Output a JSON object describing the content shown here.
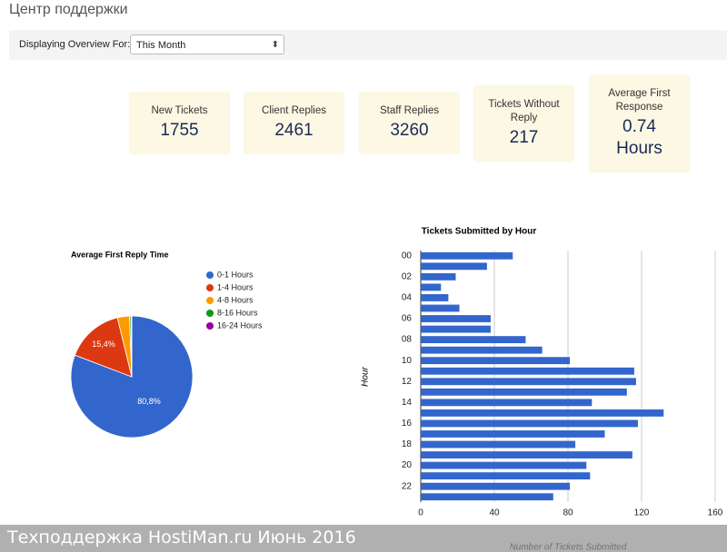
{
  "header": {
    "title": "Центр поддержки"
  },
  "filter": {
    "label": "Displaying Overview For:",
    "selected": "This Month"
  },
  "stats": [
    {
      "label": "New Tickets",
      "value": 1755
    },
    {
      "label": "Client Replies",
      "value": 2461
    },
    {
      "label": "Staff Replies",
      "value": 3260
    },
    {
      "label": "Tickets Without Reply",
      "value": 217
    },
    {
      "label": "Average First Response",
      "value": 0.74,
      "unit": "Hours"
    }
  ],
  "chart_data": [
    {
      "type": "pie",
      "title": "Average First Reply Time",
      "categories": [
        "0-1 Hours",
        "1-4 Hours",
        "4-8 Hours",
        "8-16 Hours",
        "16-24 Hours"
      ],
      "values": [
        80.8,
        15.4,
        3.2,
        0.4,
        0.2
      ],
      "value_labels": [
        "80,8%",
        "15,4%",
        null,
        null,
        null
      ],
      "colors": [
        "#3366cc",
        "#dc3912",
        "#ff9900",
        "#109618",
        "#990099"
      ],
      "legend": "right"
    },
    {
      "type": "bar",
      "orientation": "horizontal",
      "title": "Tickets Submitted by Hour",
      "y_label": "Hour",
      "x_label": "Number of Tickets Submitted",
      "categories": [
        "00",
        null,
        "02",
        null,
        "04",
        null,
        "06",
        null,
        "08",
        null,
        "10",
        null,
        "12",
        null,
        "14",
        null,
        "16",
        null,
        "18",
        null,
        "20",
        null,
        "22",
        null
      ],
      "values": [
        50,
        36,
        19,
        11,
        15,
        21,
        38,
        38,
        57,
        66,
        81,
        116,
        117,
        112,
        93,
        132,
        118,
        100,
        84,
        115,
        90,
        92,
        81,
        72
      ],
      "color": "#3366cc",
      "xlim": [
        0,
        160
      ],
      "xticks": [
        0,
        40,
        80,
        120,
        160
      ],
      "grid": true
    }
  ],
  "watermark": "Техподдержка HostiMan.ru Июнь 2016"
}
